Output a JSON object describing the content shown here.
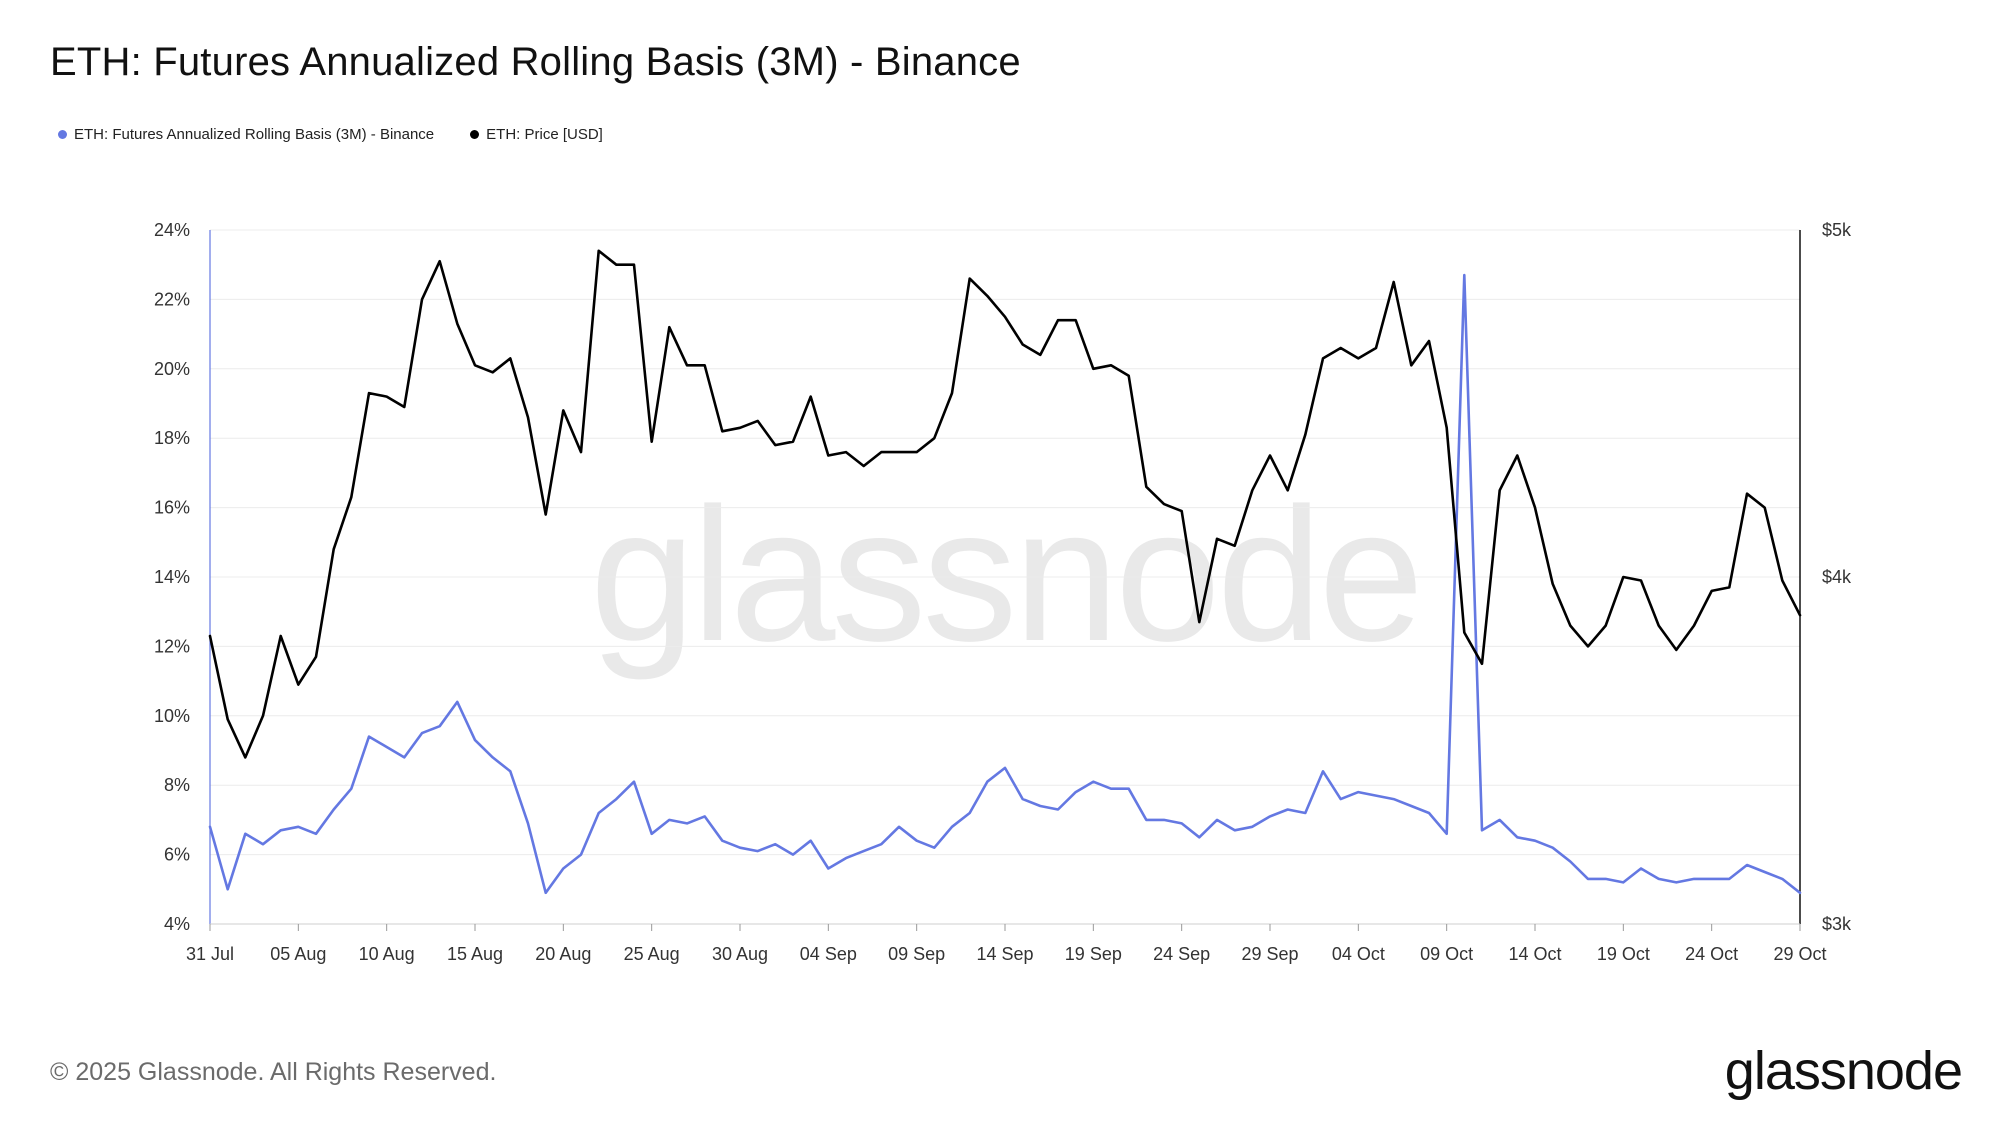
{
  "title": "ETH: Futures Annualized Rolling Basis (3M) - Binance",
  "footer": {
    "copyright": "© 2025 Glassnode. All Rights Reserved.",
    "logo_text": "glassnode",
    "watermark": "glassnode"
  },
  "colors": {
    "basis": "#6478e2",
    "price": "#000000",
    "grid": "#ececec",
    "watermark": "#e9e9e9"
  },
  "chart_data": {
    "type": "line",
    "title": "ETH: Futures Annualized Rolling Basis (3M) - Binance",
    "legend_position": "top-left",
    "grid": true,
    "x_tick_labels": [
      "31 Jul",
      "05 Aug",
      "10 Aug",
      "15 Aug",
      "20 Aug",
      "25 Aug",
      "30 Aug",
      "04 Sep",
      "09 Sep",
      "14 Sep",
      "19 Sep",
      "24 Sep",
      "29 Sep",
      "04 Oct",
      "09 Oct",
      "14 Oct",
      "19 Oct",
      "24 Oct",
      "29 Oct"
    ],
    "x_tick_days": [
      0,
      5,
      10,
      15,
      20,
      25,
      30,
      35,
      40,
      45,
      50,
      55,
      60,
      65,
      70,
      75,
      80,
      85,
      90
    ],
    "x_range_days": [
      0,
      90
    ],
    "x_start_label": "31 Jul",
    "y_left": {
      "ticks": [
        "4%",
        "6%",
        "8%",
        "10%",
        "12%",
        "14%",
        "16%",
        "18%",
        "20%",
        "22%",
        "24%"
      ],
      "range": [
        4,
        24
      ],
      "unit": "%"
    },
    "y_right": {
      "ticks": [
        "$3k",
        "$4k",
        "$5k"
      ],
      "range": [
        3000,
        5000
      ],
      "unit": "USD"
    },
    "series": [
      {
        "name": "ETH: Futures Annualized Rolling Basis (3M) - Binance",
        "axis": "left",
        "color": "#6478e2",
        "values": [
          6.8,
          5.0,
          6.6,
          6.3,
          6.7,
          6.8,
          6.6,
          7.3,
          7.9,
          9.4,
          9.1,
          8.8,
          9.5,
          9.7,
          10.4,
          9.3,
          8.8,
          8.4,
          6.9,
          4.9,
          5.6,
          6.0,
          7.2,
          7.6,
          8.1,
          6.6,
          7.0,
          6.9,
          7.1,
          6.4,
          6.2,
          6.1,
          6.3,
          6.0,
          6.4,
          5.6,
          5.9,
          6.1,
          6.3,
          6.8,
          6.4,
          6.2,
          6.8,
          7.2,
          8.1,
          8.5,
          7.6,
          7.4,
          7.3,
          7.8,
          8.1,
          7.9,
          7.9,
          7.0,
          7.0,
          6.9,
          6.5,
          7.0,
          6.7,
          6.8,
          7.1,
          7.3,
          7.2,
          8.4,
          7.6,
          7.8,
          7.7,
          7.6,
          7.4,
          7.2,
          6.6,
          22.7,
          6.7,
          7.0,
          6.5,
          6.4,
          6.2,
          5.8,
          5.3,
          5.3,
          5.2,
          5.6,
          5.3,
          5.2,
          5.3,
          5.3,
          5.3,
          5.7,
          5.5,
          5.3,
          4.9
        ]
      },
      {
        "name": "ETH: Price [USD]",
        "axis": "right",
        "color": "#000000",
        "values": [
          3830,
          3590,
          3480,
          3600,
          3830,
          3690,
          3770,
          4080,
          4230,
          4530,
          4520,
          4490,
          4800,
          4910,
          4730,
          4610,
          4590,
          4630,
          4460,
          4180,
          4480,
          4360,
          4940,
          4900,
          4900,
          4390,
          4720,
          4610,
          4610,
          4420,
          4430,
          4450,
          4380,
          4390,
          4520,
          4350,
          4360,
          4320,
          4360,
          4360,
          4360,
          4400,
          4530,
          4860,
          4810,
          4750,
          4670,
          4640,
          4740,
          4740,
          4600,
          4610,
          4580,
          4260,
          4210,
          4190,
          3870,
          4110,
          4090,
          4250,
          4350,
          4250,
          4410,
          4630,
          4660,
          4630,
          4660,
          4850,
          4610,
          4680,
          4430,
          3840,
          3750,
          4250,
          4350,
          4200,
          3980,
          3860,
          3800,
          3860,
          4000,
          3990,
          3860,
          3790,
          3860,
          3960,
          3970,
          4240,
          4200,
          3990,
          3890
        ]
      }
    ]
  }
}
